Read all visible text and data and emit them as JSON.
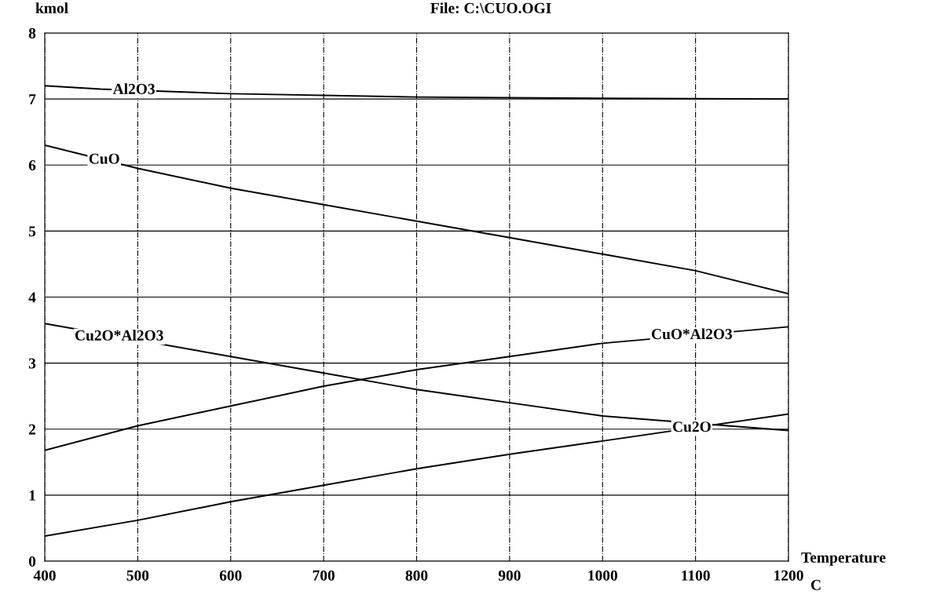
{
  "chart_data": {
    "type": "line",
    "title": "File: C:\\CUO.OGI",
    "ylabel": "kmol",
    "xlabel": "Temperature",
    "annotations": [
      "C"
    ],
    "xlim": [
      400,
      1200
    ],
    "xticks": [
      400,
      500,
      600,
      700,
      800,
      900,
      1000,
      1100,
      1200
    ],
    "ylim": [
      0,
      8
    ],
    "yticks": [
      0,
      1,
      2,
      3,
      4,
      5,
      6,
      7,
      8
    ],
    "grid": true,
    "legend": false,
    "marker": "none",
    "line_style": "solid",
    "series": [
      {
        "name": "Al2O3",
        "color": "#000000",
        "x": [
          400,
          460,
          600,
          800,
          1000,
          1200
        ],
        "values": [
          7.2,
          7.15,
          7.08,
          7.03,
          7.01,
          7.0
        ]
      },
      {
        "name": "CuO",
        "color": "#000000",
        "x": [
          400,
          500,
          600,
          700,
          800,
          900,
          1000,
          1100,
          1200
        ],
        "values": [
          6.3,
          5.95,
          5.65,
          5.4,
          5.15,
          4.9,
          4.65,
          4.4,
          4.05
        ]
      },
      {
        "name": "Cu2O*Al2O3",
        "color": "#000000",
        "x": [
          400,
          600,
          700,
          800,
          900,
          1000,
          1200
        ],
        "values": [
          3.6,
          3.1,
          2.85,
          2.6,
          2.4,
          2.2,
          1.98
        ]
      },
      {
        "name": "CuO*Al2O3",
        "color": "#000000",
        "x": [
          400,
          500,
          600,
          700,
          800,
          900,
          1000,
          1200
        ],
        "values": [
          1.68,
          2.05,
          2.35,
          2.65,
          2.9,
          3.1,
          3.3,
          3.55
        ]
      },
      {
        "name": "Cu2O",
        "color": "#000000",
        "x": [
          400,
          500,
          600,
          700,
          800,
          900,
          1000,
          1200
        ],
        "values": [
          0.38,
          0.62,
          0.9,
          1.15,
          1.4,
          1.62,
          1.82,
          2.23
        ]
      }
    ]
  }
}
